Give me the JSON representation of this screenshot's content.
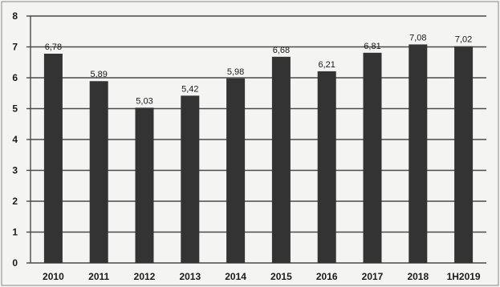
{
  "chart_data": {
    "type": "bar",
    "categories": [
      "2010",
      "2011",
      "2012",
      "2013",
      "2014",
      "2015",
      "2016",
      "2017",
      "2018",
      "1H2019"
    ],
    "values": [
      6.78,
      5.89,
      5.03,
      5.42,
      5.98,
      6.68,
      6.21,
      6.81,
      7.08,
      7.02
    ],
    "data_labels": [
      "6,78",
      "5,89",
      "5,03",
      "5,42",
      "5,98",
      "6,68",
      "6,21",
      "6,81",
      "7,08",
      "7,02"
    ],
    "yticks": [
      "0",
      "1",
      "2",
      "3",
      "4",
      "5",
      "6",
      "7",
      "8"
    ],
    "ylim": [
      0,
      8
    ],
    "grid": true,
    "legend": "none",
    "colors": {
      "bar": "#333333",
      "grid": "#4a4a4a",
      "background": "#f4f4f2",
      "text": "#1a1a1a"
    }
  }
}
